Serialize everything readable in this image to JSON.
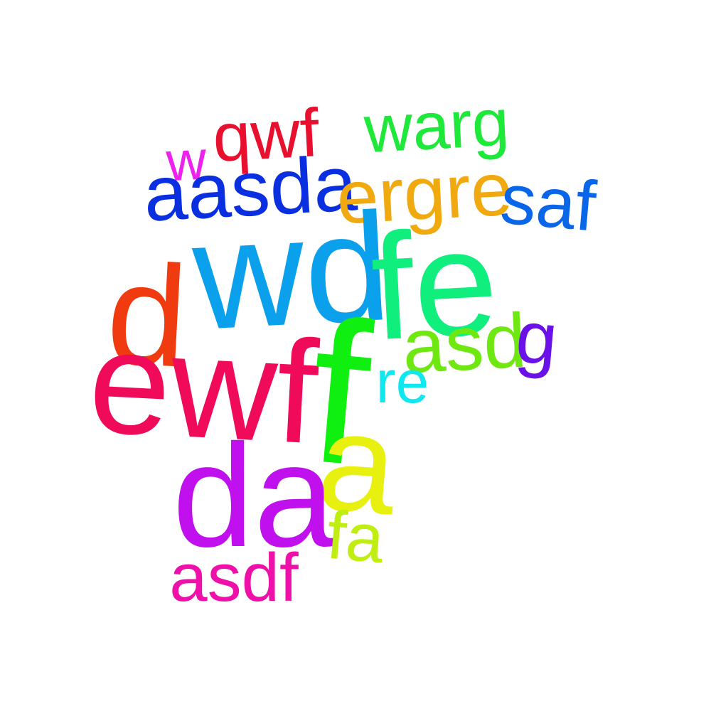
{
  "cloud": {
    "background": "#ffffff",
    "words": {
      "w": {
        "text": "w",
        "color": "#ee22ee"
      },
      "qwf": {
        "text": "qwf",
        "color": "#e8102e"
      },
      "warg": {
        "text": "warg",
        "color": "#1ee83a"
      },
      "aasda": {
        "text": "aasda",
        "color": "#0a2fe0"
      },
      "ergre": {
        "text": "ergre",
        "color": "#f0aa10"
      },
      "saf": {
        "text": "saf",
        "color": "#0a66e8"
      },
      "d": {
        "text": "d",
        "color": "#f03a10"
      },
      "wd": {
        "text": "wd",
        "color": "#0aa0ec"
      },
      "fe": {
        "text": "fe",
        "color": "#10ee7e"
      },
      "asd": {
        "text": "asd",
        "color": "#6ee810"
      },
      "g": {
        "text": "g",
        "color": "#6a10e8"
      },
      "ewf": {
        "text": "ewf",
        "color": "#f00a5a"
      },
      "f": {
        "text": "f",
        "color": "#10f010"
      },
      "re": {
        "text": "re",
        "color": "#10e8f0"
      },
      "a": {
        "text": "a",
        "color": "#e8f010"
      },
      "da": {
        "text": "da",
        "color": "#c010ee"
      },
      "fa": {
        "text": "fa",
        "color": "#c0ee10"
      },
      "asdf": {
        "text": "asdf",
        "color": "#ee10a8"
      }
    }
  }
}
